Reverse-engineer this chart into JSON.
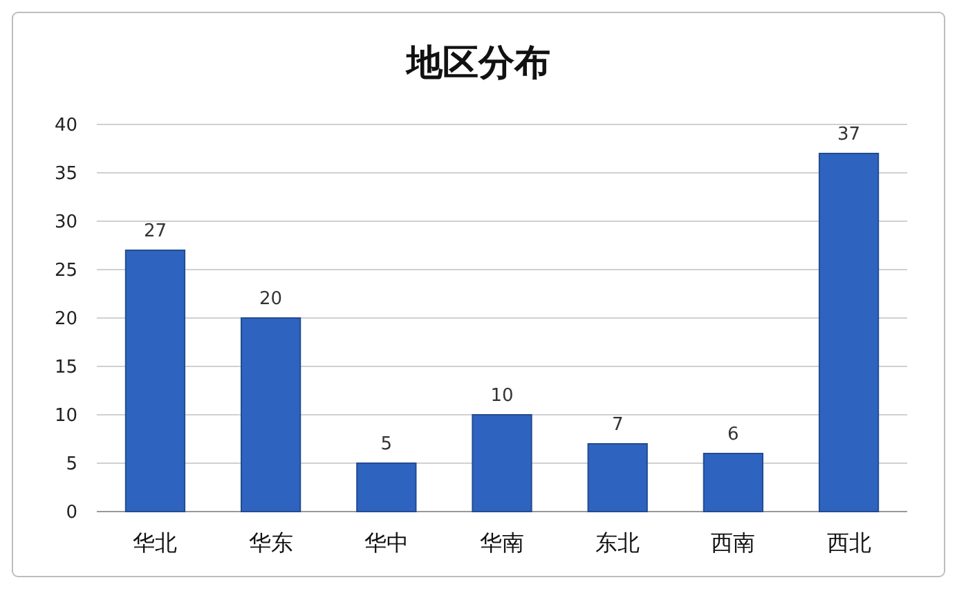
{
  "chart_data": {
    "type": "bar",
    "title": "地区分布",
    "categories": [
      "华北",
      "华东",
      "华中",
      "华南",
      "东北",
      "西南",
      "西北"
    ],
    "values": [
      27,
      20,
      5,
      10,
      7,
      6,
      37
    ],
    "color": "#2e64c0",
    "ylim": [
      0,
      40
    ],
    "yticks": [
      0,
      5,
      10,
      15,
      20,
      25,
      30,
      35,
      40
    ],
    "grid": "y",
    "data_labels": true
  }
}
